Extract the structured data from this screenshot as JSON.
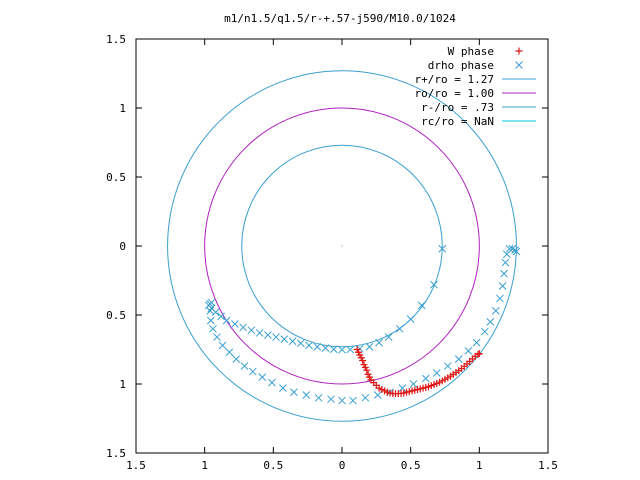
{
  "chart_data": {
    "type": "scatter",
    "title": "m1/n1.5/q1.5/r-+.57-j590/M10.0/1024",
    "xlabel": "",
    "ylabel": "",
    "xlim": [
      -1.5,
      1.5
    ],
    "ylim": [
      -1.5,
      1.5
    ],
    "x_tick_values": [
      -1.5,
      -1,
      -0.5,
      0,
      0.5,
      1,
      1.5
    ],
    "x_tick_labels": [
      "1.5",
      "1",
      "0.5",
      "0",
      "0.5",
      "1",
      "1.5"
    ],
    "y_tick_values": [
      1.5,
      1,
      0.5,
      0,
      -0.5,
      -1,
      -1.5
    ],
    "y_tick_labels": [
      "1.5",
      "1",
      "0.5",
      "0",
      "0.5",
      "1",
      "1.5"
    ],
    "grid": false,
    "legend_position": "top-right",
    "circles": [
      {
        "label": "r+/ro = 1.27",
        "radius": 1.27,
        "color": "#3a9fd0"
      },
      {
        "label": "ro/ro = 1.00",
        "radius": 1.0,
        "color": "#b020c0"
      },
      {
        "label": "r-/ro = .73",
        "radius": 0.73,
        "color": "#3a9fd0"
      },
      {
        "label": "rc/ro = NaN",
        "radius": null,
        "color": "#00c8d8"
      }
    ],
    "series": [
      {
        "name": "W phase",
        "marker": "plus",
        "color": "#e01818",
        "points": [
          [
            0.11,
            -0.75
          ],
          [
            0.12,
            -0.77
          ],
          [
            0.13,
            -0.79
          ],
          [
            0.14,
            -0.81
          ],
          [
            0.15,
            -0.83
          ],
          [
            0.16,
            -0.86
          ],
          [
            0.17,
            -0.88
          ],
          [
            0.18,
            -0.9
          ],
          [
            0.19,
            -0.93
          ],
          [
            0.2,
            -0.95
          ],
          [
            0.21,
            -0.97
          ],
          [
            0.23,
            -0.99
          ],
          [
            0.25,
            -1.01
          ],
          [
            0.27,
            -1.03
          ],
          [
            0.29,
            -1.04
          ],
          [
            0.31,
            -1.05
          ],
          [
            0.33,
            -1.06
          ],
          [
            0.35,
            -1.065
          ],
          [
            0.37,
            -1.07
          ],
          [
            0.39,
            -1.07
          ],
          [
            0.41,
            -1.07
          ],
          [
            0.43,
            -1.068
          ],
          [
            0.45,
            -1.065
          ],
          [
            0.47,
            -1.06
          ],
          [
            0.49,
            -1.055
          ],
          [
            0.51,
            -1.05
          ],
          [
            0.53,
            -1.045
          ],
          [
            0.55,
            -1.04
          ],
          [
            0.57,
            -1.035
          ],
          [
            0.59,
            -1.03
          ],
          [
            0.61,
            -1.025
          ],
          [
            0.63,
            -1.02
          ],
          [
            0.65,
            -1.012
          ],
          [
            0.67,
            -1.004
          ],
          [
            0.69,
            -0.996
          ],
          [
            0.71,
            -0.987
          ],
          [
            0.73,
            -0.977
          ],
          [
            0.75,
            -0.966
          ],
          [
            0.77,
            -0.955
          ],
          [
            0.79,
            -0.943
          ],
          [
            0.81,
            -0.93
          ],
          [
            0.83,
            -0.917
          ],
          [
            0.85,
            -0.903
          ],
          [
            0.87,
            -0.888
          ],
          [
            0.89,
            -0.872
          ],
          [
            0.91,
            -0.855
          ],
          [
            0.93,
            -0.837
          ],
          [
            0.95,
            -0.818
          ],
          [
            0.97,
            -0.8
          ],
          [
            0.99,
            -0.785
          ],
          [
            1.0,
            -0.78
          ]
        ]
      },
      {
        "name": "drho phase",
        "marker": "cross",
        "color": "#3a9fd0",
        "points": [
          [
            0.73,
            -0.02
          ],
          [
            0.67,
            -0.28
          ],
          [
            0.58,
            -0.43
          ],
          [
            0.5,
            -0.53
          ],
          [
            0.42,
            -0.6
          ],
          [
            0.34,
            -0.66
          ],
          [
            0.27,
            -0.7
          ],
          [
            0.2,
            -0.73
          ],
          [
            0.13,
            -0.745
          ],
          [
            0.06,
            -0.75
          ],
          [
            0.0,
            -0.752
          ],
          [
            -0.06,
            -0.748
          ],
          [
            -0.12,
            -0.74
          ],
          [
            -0.18,
            -0.73
          ],
          [
            -0.24,
            -0.72
          ],
          [
            -0.3,
            -0.705
          ],
          [
            -0.36,
            -0.69
          ],
          [
            -0.42,
            -0.675
          ],
          [
            -0.48,
            -0.66
          ],
          [
            -0.54,
            -0.645
          ],
          [
            -0.6,
            -0.63
          ],
          [
            -0.66,
            -0.61
          ],
          [
            -0.72,
            -0.59
          ],
          [
            -0.78,
            -0.565
          ],
          [
            -0.84,
            -0.54
          ],
          [
            -0.88,
            -0.51
          ],
          [
            -0.92,
            -0.48
          ],
          [
            -0.95,
            -0.45
          ],
          [
            -0.97,
            -0.43
          ],
          [
            -0.96,
            -0.42
          ],
          [
            -0.95,
            -0.41
          ],
          [
            -0.96,
            -0.47
          ],
          [
            -0.955,
            -0.54
          ],
          [
            -0.94,
            -0.6
          ],
          [
            -0.91,
            -0.66
          ],
          [
            -0.87,
            -0.72
          ],
          [
            -0.82,
            -0.77
          ],
          [
            -0.77,
            -0.82
          ],
          [
            -0.71,
            -0.87
          ],
          [
            -0.65,
            -0.91
          ],
          [
            -0.58,
            -0.95
          ],
          [
            -0.51,
            -0.99
          ],
          [
            -0.43,
            -1.03
          ],
          [
            -0.35,
            -1.06
          ],
          [
            -0.26,
            -1.08
          ],
          [
            -0.17,
            -1.1
          ],
          [
            -0.08,
            -1.11
          ],
          [
            0.0,
            -1.12
          ],
          [
            0.08,
            -1.12
          ],
          [
            0.17,
            -1.1
          ],
          [
            0.26,
            -1.08
          ],
          [
            0.35,
            -1.06
          ],
          [
            0.44,
            -1.03
          ],
          [
            0.52,
            -1.0
          ],
          [
            0.61,
            -0.96
          ],
          [
            0.69,
            -0.92
          ],
          [
            0.77,
            -0.87
          ],
          [
            0.85,
            -0.82
          ],
          [
            0.92,
            -0.76
          ],
          [
            0.98,
            -0.7
          ],
          [
            1.04,
            -0.62
          ],
          [
            1.08,
            -0.55
          ],
          [
            1.12,
            -0.47
          ],
          [
            1.15,
            -0.38
          ],
          [
            1.17,
            -0.29
          ],
          [
            1.18,
            -0.2
          ],
          [
            1.19,
            -0.12
          ],
          [
            1.2,
            -0.06
          ],
          [
            1.22,
            -0.02
          ],
          [
            1.24,
            -0.02
          ],
          [
            1.26,
            -0.03
          ],
          [
            1.27,
            -0.04
          ]
        ]
      }
    ]
  }
}
